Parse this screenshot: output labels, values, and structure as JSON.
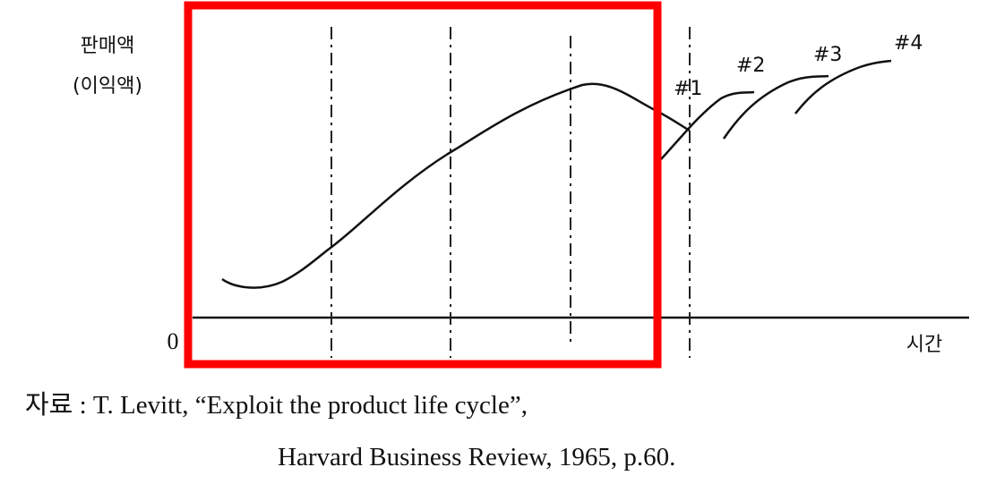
{
  "axes": {
    "y_label": [
      "판매액",
      "(이익액)"
    ],
    "origin": "0",
    "x_label": "시간"
  },
  "curve_labels": [
    "#1",
    "#2",
    "#3",
    "#4"
  ],
  "source": {
    "line1": "자료 : T. Levitt, “Exploit the product life cycle”,",
    "line2": "Harvard Business Review, 1965, p.60."
  }
}
